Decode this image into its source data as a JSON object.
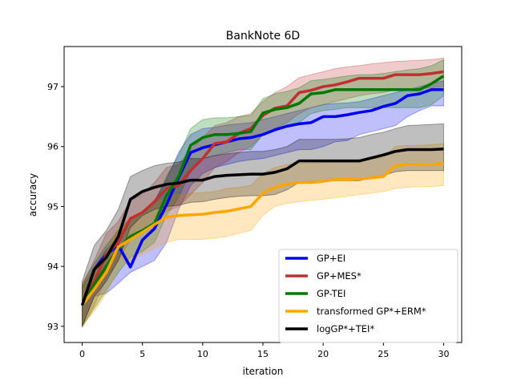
{
  "chart_data": {
    "type": "line",
    "title": "BankNote 6D",
    "xlabel": "iteration",
    "ylabel": "accuracy",
    "xlim": [
      -1.5,
      31.5
    ],
    "ylim": [
      92.73,
      97.67
    ],
    "xticks": [
      0,
      5,
      10,
      15,
      20,
      25,
      30
    ],
    "yticks": [
      93,
      94,
      95,
      96,
      97
    ],
    "grid": false,
    "legend_position": "lower-right",
    "x": [
      0,
      1,
      2,
      3,
      4,
      5,
      6,
      7,
      8,
      9,
      10,
      11,
      12,
      13,
      14,
      15,
      16,
      17,
      18,
      19,
      20,
      21,
      22,
      23,
      24,
      25,
      26,
      27,
      28,
      29,
      30
    ],
    "series": [
      {
        "name": "GP+EI",
        "color": "#0000ee",
        "values": [
          93.35,
          93.95,
          94.2,
          94.35,
          93.99,
          94.44,
          94.63,
          95.03,
          95.48,
          95.9,
          95.98,
          96.03,
          96.08,
          96.13,
          96.15,
          96.2,
          96.28,
          96.34,
          96.38,
          96.4,
          96.5,
          96.5,
          96.53,
          96.57,
          96.6,
          96.67,
          96.72,
          96.85,
          96.88,
          96.95,
          96.95
        ],
        "lower": [
          93.0,
          93.5,
          93.55,
          93.72,
          93.9,
          94.0,
          94.1,
          94.4,
          94.95,
          95.35,
          95.55,
          95.65,
          95.7,
          95.75,
          95.78,
          95.8,
          95.85,
          95.9,
          95.95,
          95.95,
          96.0,
          96.08,
          96.1,
          96.2,
          96.25,
          96.3,
          96.35,
          96.5,
          96.6,
          96.68,
          96.68
        ],
        "upper": [
          93.65,
          93.98,
          94.28,
          94.48,
          94.8,
          94.9,
          95.1,
          95.45,
          95.9,
          96.2,
          96.3,
          96.32,
          96.36,
          96.38,
          96.4,
          96.45,
          96.5,
          96.55,
          96.6,
          96.65,
          96.7,
          96.72,
          96.73,
          96.75,
          96.8,
          96.85,
          96.9,
          96.95,
          97.0,
          97.05,
          97.1
        ]
      },
      {
        "name": "GP+MES*",
        "color": "#c03030",
        "values": [
          93.35,
          93.75,
          94.2,
          94.4,
          94.8,
          94.9,
          95.08,
          95.3,
          95.35,
          95.6,
          95.8,
          96.05,
          96.08,
          96.22,
          96.3,
          96.52,
          96.64,
          96.68,
          96.9,
          96.94,
          97.0,
          97.03,
          97.08,
          97.14,
          97.14,
          97.14,
          97.2,
          97.2,
          97.2,
          97.22,
          97.25
        ],
        "lower": [
          92.98,
          93.35,
          93.8,
          94.1,
          94.45,
          94.6,
          94.7,
          94.92,
          95.0,
          95.2,
          95.4,
          95.65,
          95.75,
          95.9,
          96.0,
          96.2,
          96.3,
          96.4,
          96.55,
          96.65,
          96.7,
          96.75,
          96.8,
          96.85,
          96.88,
          96.9,
          96.95,
          96.95,
          96.97,
          96.98,
          97.0
        ],
        "upper": [
          93.7,
          94.1,
          94.55,
          94.75,
          95.1,
          95.2,
          95.4,
          95.65,
          95.7,
          95.95,
          96.15,
          96.35,
          96.4,
          96.5,
          96.55,
          96.75,
          96.9,
          97.0,
          97.15,
          97.2,
          97.25,
          97.3,
          97.33,
          97.35,
          97.38,
          97.4,
          97.42,
          97.43,
          97.44,
          97.45,
          97.48
        ]
      },
      {
        "name": "GP-TEI",
        "color": "#007800",
        "values": [
          93.35,
          93.7,
          94.0,
          94.3,
          94.5,
          94.6,
          94.72,
          95.18,
          95.5,
          96.02,
          96.15,
          96.2,
          96.2,
          96.22,
          96.25,
          96.56,
          96.62,
          96.65,
          96.72,
          96.88,
          96.9,
          96.95,
          96.95,
          96.95,
          96.95,
          96.95,
          96.95,
          96.95,
          96.95,
          97.05,
          97.18
        ],
        "lower": [
          93.0,
          93.3,
          93.6,
          93.9,
          94.15,
          94.25,
          94.4,
          94.85,
          95.15,
          95.6,
          95.8,
          95.85,
          95.9,
          95.95,
          95.95,
          96.2,
          96.3,
          96.35,
          96.4,
          96.55,
          96.6,
          96.62,
          96.65,
          96.65,
          96.65,
          96.65,
          96.65,
          96.65,
          96.65,
          96.7,
          96.85
        ],
        "upper": [
          93.7,
          94.05,
          94.35,
          94.6,
          94.8,
          94.9,
          95.05,
          95.5,
          95.85,
          96.3,
          96.45,
          96.48,
          96.48,
          96.5,
          96.52,
          96.8,
          96.88,
          96.92,
          96.98,
          97.1,
          97.12,
          97.15,
          97.18,
          97.2,
          97.2,
          97.22,
          97.25,
          97.28,
          97.3,
          97.35,
          97.45
        ]
      },
      {
        "name": "transformed GP*+ERM*",
        "color": "#ffa500",
        "values": [
          93.35,
          93.62,
          93.9,
          94.33,
          94.45,
          94.57,
          94.7,
          94.82,
          94.85,
          94.86,
          94.87,
          94.9,
          94.92,
          94.96,
          95.0,
          95.22,
          95.32,
          95.37,
          95.4,
          95.4,
          95.42,
          95.45,
          95.45,
          95.46,
          95.48,
          95.5,
          95.68,
          95.7,
          95.7,
          95.7,
          95.72
        ],
        "lower": [
          93.0,
          93.25,
          93.55,
          93.95,
          94.1,
          94.2,
          94.3,
          94.4,
          94.45,
          94.45,
          94.45,
          94.47,
          94.5,
          94.55,
          94.6,
          94.85,
          95.0,
          95.05,
          95.08,
          95.1,
          95.12,
          95.15,
          95.17,
          95.2,
          95.22,
          95.25,
          95.3,
          95.32,
          95.33,
          95.33,
          95.35
        ],
        "upper": [
          93.7,
          93.95,
          94.25,
          94.65,
          94.8,
          94.9,
          95.05,
          95.15,
          95.2,
          95.22,
          95.23,
          95.25,
          95.3,
          95.32,
          95.35,
          95.55,
          95.65,
          95.7,
          95.72,
          95.72,
          95.74,
          95.76,
          95.76,
          95.78,
          95.8,
          95.82,
          96.0,
          96.02,
          96.02,
          96.03,
          96.05
        ]
      },
      {
        "name": "logGP*+TEI*",
        "color": "#000000",
        "values": [
          93.35,
          93.95,
          94.15,
          94.5,
          95.12,
          95.25,
          95.32,
          95.37,
          95.39,
          95.44,
          95.44,
          95.5,
          95.52,
          95.53,
          95.54,
          95.54,
          95.57,
          95.63,
          95.76,
          95.76,
          95.76,
          95.76,
          95.76,
          95.76,
          95.81,
          95.86,
          95.92,
          95.95,
          95.95,
          95.95,
          95.96
        ],
        "lower": [
          93.0,
          93.5,
          93.75,
          94.1,
          94.65,
          94.85,
          94.95,
          95.0,
          95.02,
          95.07,
          95.08,
          95.12,
          95.15,
          95.17,
          95.18,
          95.18,
          95.2,
          95.28,
          95.4,
          95.42,
          95.43,
          95.43,
          95.43,
          95.43,
          95.48,
          95.52,
          95.58,
          95.6,
          95.6,
          95.6,
          95.6
        ],
        "upper": [
          93.75,
          94.35,
          94.6,
          94.95,
          95.5,
          95.6,
          95.68,
          95.72,
          95.74,
          95.8,
          95.8,
          95.85,
          95.88,
          95.9,
          95.92,
          95.92,
          95.95,
          96.0,
          96.12,
          96.12,
          96.12,
          96.12,
          96.13,
          96.15,
          96.2,
          96.24,
          96.3,
          96.35,
          96.36,
          96.37,
          96.38
        ]
      }
    ]
  }
}
